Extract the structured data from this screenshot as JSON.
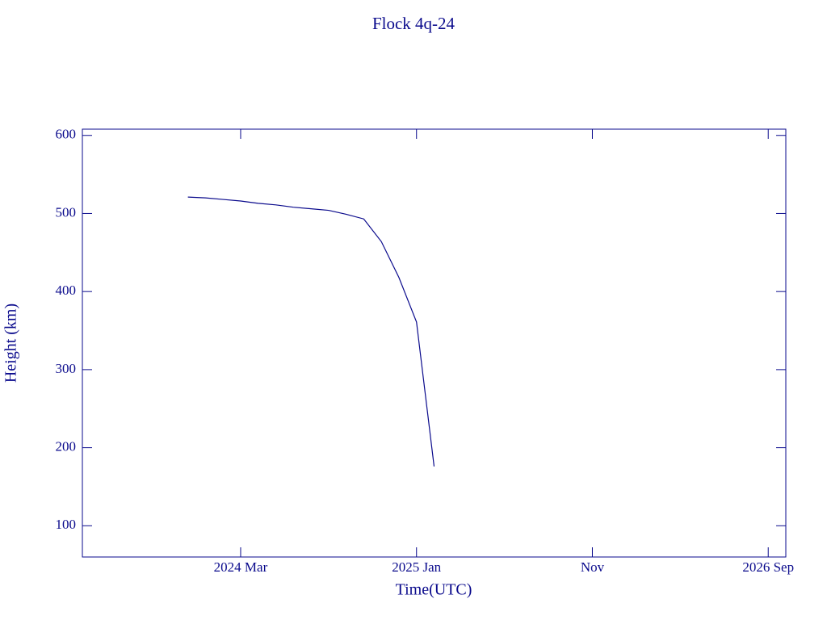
{
  "chart_data": {
    "type": "line",
    "title": "Flock 4q-24",
    "xlabel": "Time(UTC)",
    "ylabel": "Height (km)",
    "x": [
      "2023-12",
      "2024-01",
      "2024-02",
      "2024-03",
      "2024-04",
      "2024-05",
      "2024-06",
      "2024-07",
      "2024-08",
      "2024-09",
      "2024-10",
      "2024-11",
      "2024-12",
      "2025-01",
      "2025-02"
    ],
    "series": [
      {
        "name": "Flock 4q-24",
        "color": "#0a0a8c",
        "values": [
          521,
          520,
          518,
          516,
          513,
          511,
          508,
          506,
          504,
          499,
          493,
          464,
          418,
          361,
          176
        ]
      }
    ],
    "xlim": [
      "2023-06",
      "2026-10"
    ],
    "xticks": [
      {
        "value": "2024-03",
        "label": "2024 Mar"
      },
      {
        "value": "2025-01",
        "label": "2025 Jan"
      },
      {
        "value": "2025-11",
        "label": "Nov"
      },
      {
        "value": "2026-09",
        "label": "2026 Sep"
      }
    ],
    "ylim": [
      60,
      608
    ],
    "yticks": [
      100,
      200,
      300,
      400,
      500,
      600
    ]
  }
}
